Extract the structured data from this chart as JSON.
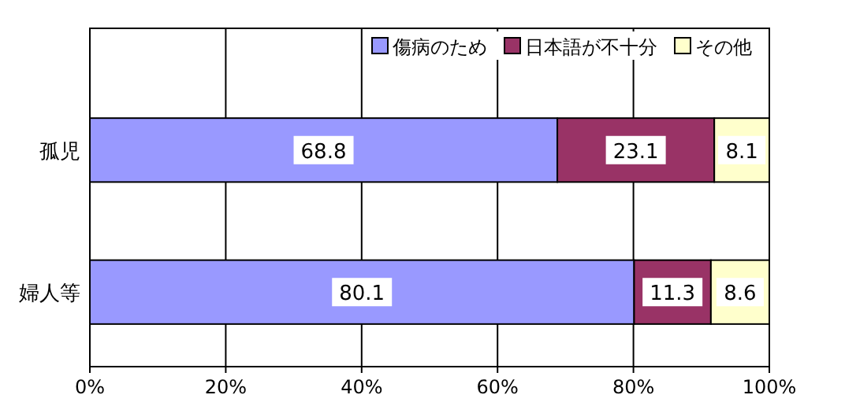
{
  "chart_data": {
    "type": "bar",
    "orientation": "horizontal",
    "stacked": true,
    "categories": [
      "孤児",
      "婦人等"
    ],
    "series": [
      {
        "name": "傷病のため",
        "color": "#9999ff",
        "values": [
          68.8,
          80.1
        ]
      },
      {
        "name": "日本語が不十分",
        "color": "#993366",
        "values": [
          23.1,
          11.3
        ]
      },
      {
        "name": "その他",
        "color": "#ffffcc",
        "values": [
          8.1,
          8.6
        ]
      }
    ],
    "xlim": [
      0,
      100
    ],
    "xticks": [
      {
        "value": 0,
        "label": "0%"
      },
      {
        "value": 20,
        "label": "20%"
      },
      {
        "value": 40,
        "label": "40%"
      },
      {
        "value": 60,
        "label": "60%"
      },
      {
        "value": 80,
        "label": "80%"
      },
      {
        "value": 100,
        "label": "100%"
      }
    ],
    "grid": "x",
    "legend": "top right",
    "data_labels": true
  }
}
